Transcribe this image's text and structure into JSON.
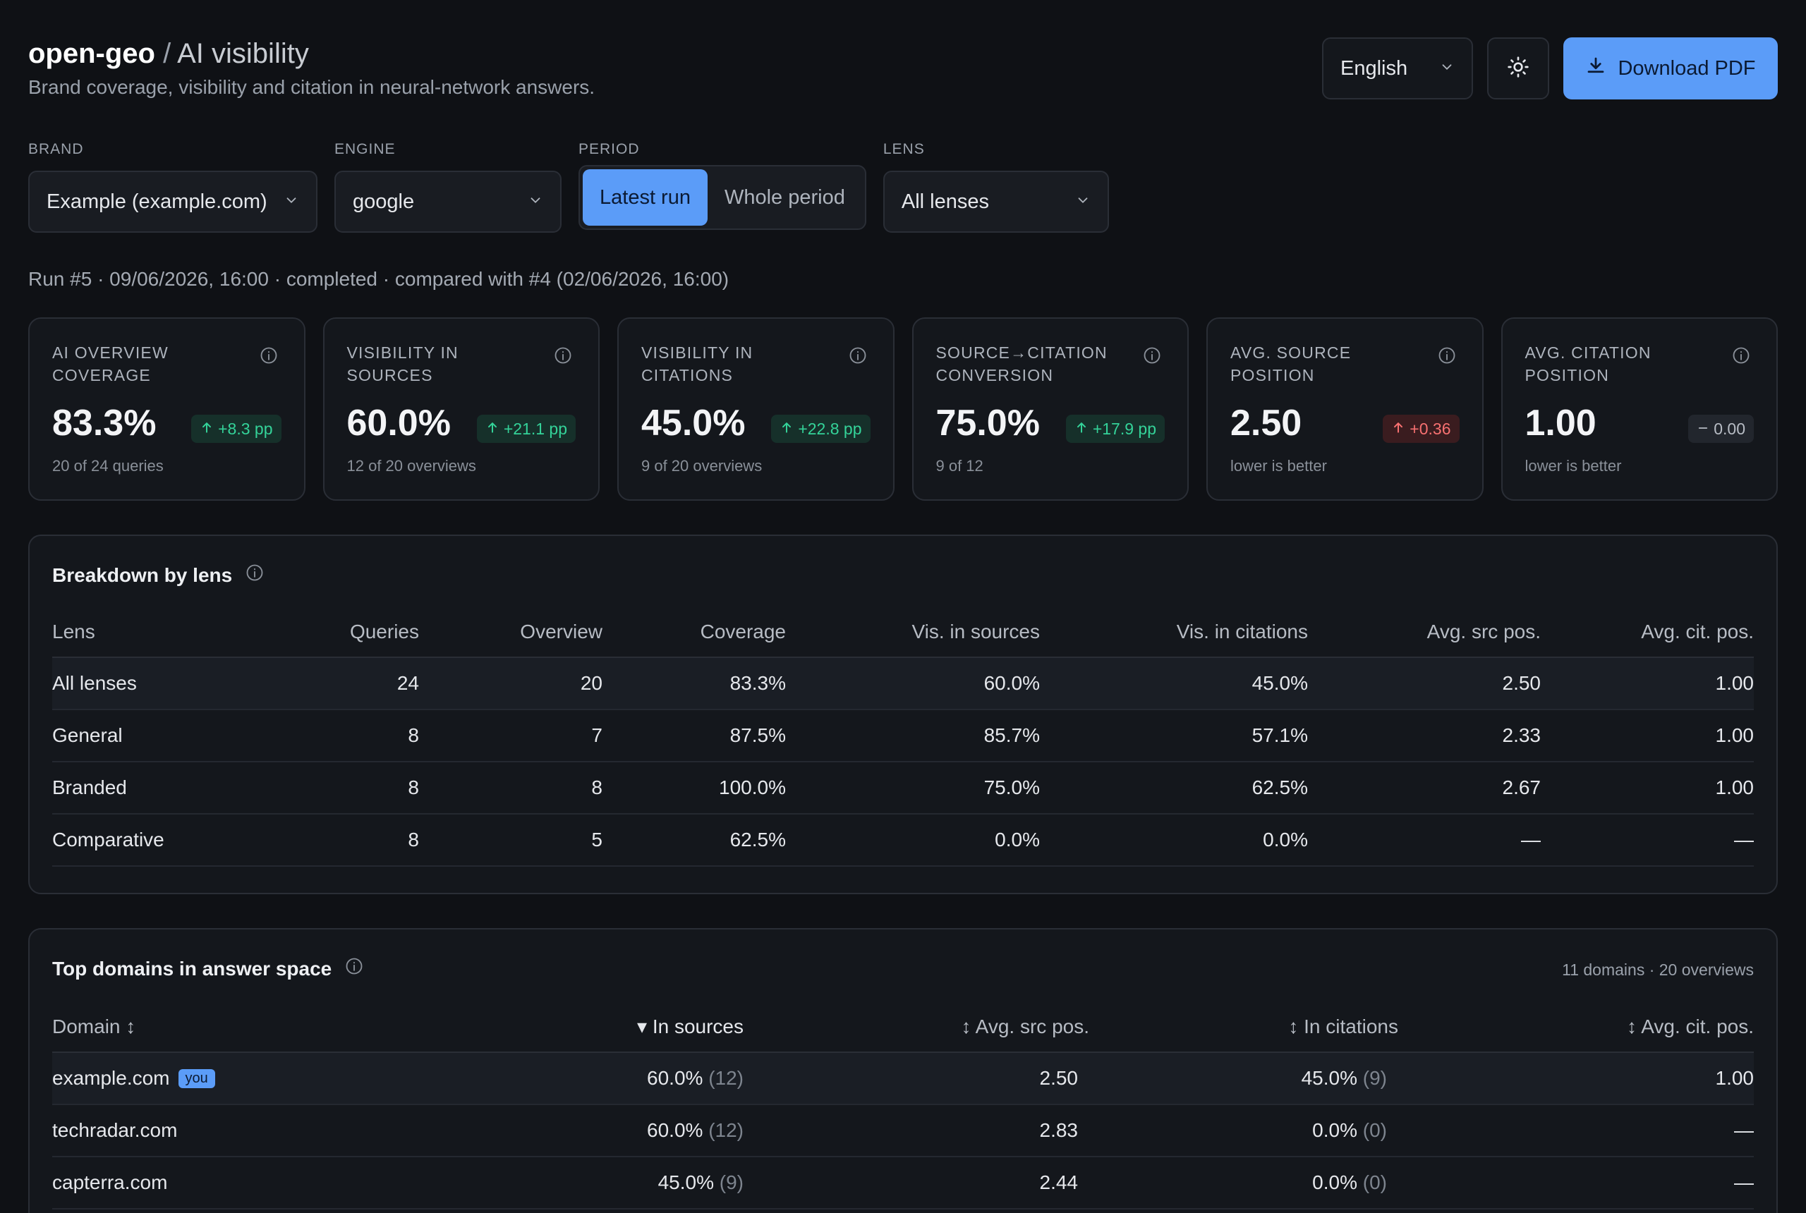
{
  "header": {
    "brand": "open-geo",
    "separator": " / ",
    "section": "AI visibility",
    "subtitle": "Brand coverage, visibility and citation in neural-network answers.",
    "language": "English",
    "download_label": "Download PDF"
  },
  "filters": {
    "brand": {
      "label": "BRAND",
      "value": "Example (example.com)"
    },
    "engine": {
      "label": "ENGINE",
      "value": "google"
    },
    "period": {
      "label": "PERIOD",
      "options": [
        "Latest run",
        "Whole period"
      ],
      "selected": "Latest run"
    },
    "lens": {
      "label": "LENS",
      "value": "All lenses"
    }
  },
  "run_info": "Run #5 · 09/06/2026, 16:00 · completed · compared with #4 (02/06/2026, 16:00)",
  "kpis": [
    {
      "label": "AI OVERVIEW COVERAGE",
      "value": "83.3%",
      "delta": "+8.3 pp",
      "trend": "up-good",
      "sub": "20 of 24 queries"
    },
    {
      "label": "VISIBILITY IN SOURCES",
      "value": "60.0%",
      "delta": "+21.1 pp",
      "trend": "up-good",
      "sub": "12 of 20 overviews"
    },
    {
      "label": "VISIBILITY IN CITATIONS",
      "value": "45.0%",
      "delta": "+22.8 pp",
      "trend": "up-good",
      "sub": "9 of 20 overviews"
    },
    {
      "label": "SOURCE→CITATION CONVERSION",
      "value": "75.0%",
      "delta": "+17.9 pp",
      "trend": "up-good",
      "sub": "9 of 12"
    },
    {
      "label": "AVG. SOURCE POSITION",
      "value": "2.50",
      "delta": "+0.36",
      "trend": "up-bad",
      "sub": "lower is better"
    },
    {
      "label": "AVG. CITATION POSITION",
      "value": "1.00",
      "delta": "0.00",
      "trend": "flat",
      "sub": "lower is better"
    }
  ],
  "colors": {
    "accent": "#5b9cf8",
    "good": "#34d399",
    "bad": "#f87171",
    "background": "#0f1115",
    "card": "#14171c"
  },
  "lens_breakdown": {
    "title": "Breakdown by lens",
    "columns": [
      "Lens",
      "Queries",
      "Overview",
      "Coverage",
      "Vis. in sources",
      "Vis. in citations",
      "Avg. src pos.",
      "Avg. cit. pos."
    ],
    "rows": [
      [
        "All lenses",
        "24",
        "20",
        "83.3%",
        "60.0%",
        "45.0%",
        "2.50",
        "1.00"
      ],
      [
        "General",
        "8",
        "7",
        "87.5%",
        "85.7%",
        "57.1%",
        "2.33",
        "1.00"
      ],
      [
        "Branded",
        "8",
        "8",
        "100.0%",
        "75.0%",
        "62.5%",
        "2.67",
        "1.00"
      ],
      [
        "Comparative",
        "8",
        "5",
        "62.5%",
        "0.0%",
        "0.0%",
        "—",
        "—"
      ]
    ]
  },
  "domains": {
    "title": "Top domains in answer space",
    "meta": "11 domains · 20 overviews",
    "columns": [
      "Domain ↕",
      "▾ In sources",
      "↕ Avg. src pos.",
      "↕ In citations",
      "↕ Avg. cit. pos."
    ],
    "you_badge": "you",
    "rows": [
      {
        "domain": "example.com",
        "you": true,
        "sources": "60.0%",
        "sources_n": "(12)",
        "src_pos": "2.50",
        "citations": "45.0%",
        "citations_n": "(9)",
        "cit_pos": "1.00"
      },
      {
        "domain": "techradar.com",
        "you": false,
        "sources": "60.0%",
        "sources_n": "(12)",
        "src_pos": "2.83",
        "citations": "0.0%",
        "citations_n": "(0)",
        "cit_pos": "—"
      },
      {
        "domain": "capterra.com",
        "you": false,
        "sources": "45.0%",
        "sources_n": "(9)",
        "src_pos": "2.44",
        "citations": "0.0%",
        "citations_n": "(0)",
        "cit_pos": "—"
      }
    ]
  }
}
